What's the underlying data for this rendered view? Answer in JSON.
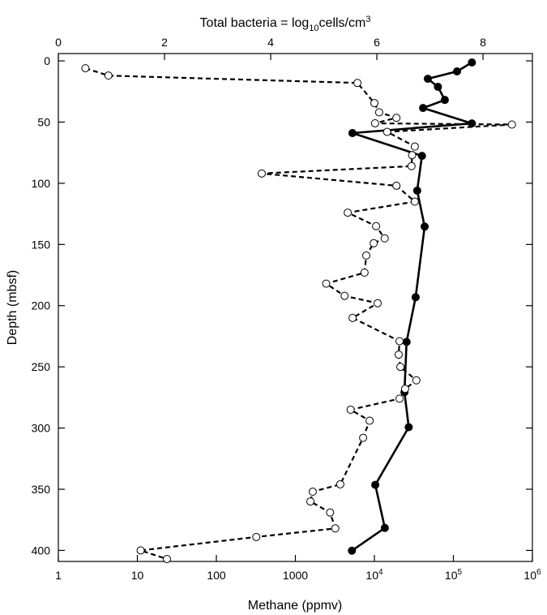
{
  "chart_data": {
    "type": "line",
    "x2label": [
      "Total bacteria = log",
      "10",
      "cells/cm",
      "3"
    ],
    "xlabel": "Methane (ppmv)",
    "ylabel": "Depth (mbsf)",
    "xscale": "log",
    "xlim": [
      1,
      1000000
    ],
    "xticks": [
      1,
      10,
      100,
      1000,
      {
        "value": 10000,
        "label": "10",
        "exponent": "4"
      },
      {
        "value": 100000,
        "label": "10",
        "exponent": "5"
      },
      {
        "value": 1000000,
        "label": "10",
        "exponent": "6"
      }
    ],
    "x2lim": [
      0,
      8.93
    ],
    "x2ticks": [
      0,
      2,
      4,
      6,
      8
    ],
    "ylim": [
      -6,
      409
    ],
    "yticks": [
      0,
      50,
      100,
      150,
      200,
      250,
      300,
      350,
      400
    ],
    "y_inverted": true,
    "series": [
      {
        "axis": "x2",
        "marker": "filled",
        "line": "solid",
        "color": "#000000",
        "x": [
          7.79,
          7.51,
          6.96,
          7.15,
          7.28,
          6.87,
          7.79,
          5.54,
          6.85,
          6.76,
          6.9,
          6.73,
          6.56,
          6.52,
          6.6,
          5.97,
          6.15,
          5.53
        ],
        "y": [
          1.3,
          8.6,
          14.6,
          21.2,
          31.9,
          38.5,
          51.1,
          59,
          77.6,
          106,
          135.4,
          193.1,
          229.6,
          270.7,
          299.3,
          346.4,
          381.6,
          400.2
        ]
      },
      {
        "axis": "x",
        "marker": "open",
        "line": "dashed",
        "color": "#000000",
        "x": [
          2.2,
          4.3,
          6100,
          10000,
          11500,
          19000,
          10200,
          550000,
          14500,
          32500,
          30000,
          29500,
          375,
          19000,
          32500,
          4600,
          10500,
          13500,
          9800,
          7900,
          7500,
          2450,
          4200,
          11000,
          5300,
          20800,
          20300,
          21300,
          34000,
          24500,
          20800,
          5000,
          8700,
          7200,
          3700,
          1660,
          1550,
          2750,
          3200,
          320,
          11,
          23.7
        ],
        "y": [
          6,
          12,
          18,
          34.5,
          42,
          46.5,
          51,
          52,
          58,
          70,
          77,
          86,
          92,
          102,
          115,
          124,
          135,
          145,
          149,
          159,
          173,
          182,
          192,
          198,
          210,
          229,
          240,
          250,
          261,
          268,
          276,
          285,
          294,
          308,
          346,
          352,
          360,
          369,
          382,
          389,
          400,
          407
        ]
      }
    ]
  }
}
